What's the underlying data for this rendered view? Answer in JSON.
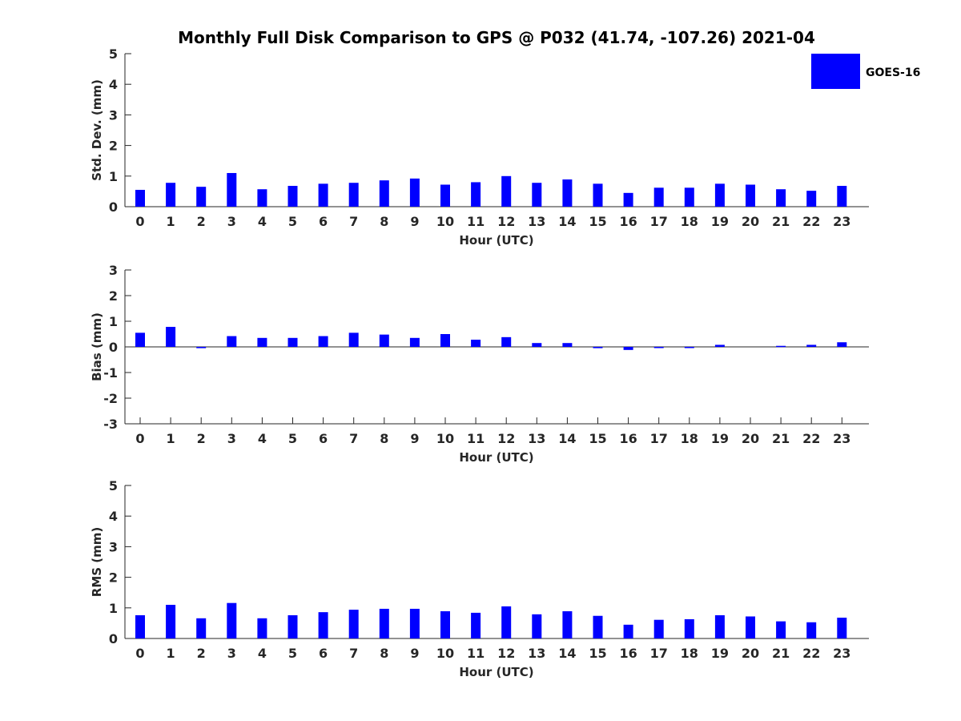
{
  "title": "Monthly Full Disk Comparison to GPS @ P032 (41.74, -107.26) 2021-04",
  "legend": {
    "label": "GOES-16",
    "color": "#0000ff",
    "placement": "top-right"
  },
  "chart_data": [
    {
      "type": "bar",
      "xlabel": "Hour (UTC)",
      "ylabel": "Std. Dev. (mm)",
      "ylim": [
        0,
        5
      ],
      "yticks": [
        "0",
        "1",
        "2",
        "3",
        "4",
        "5"
      ],
      "categories": [
        "0",
        "1",
        "2",
        "3",
        "4",
        "5",
        "6",
        "7",
        "8",
        "9",
        "10",
        "11",
        "12",
        "13",
        "14",
        "15",
        "16",
        "17",
        "18",
        "19",
        "20",
        "21",
        "22",
        "23"
      ],
      "series": [
        {
          "name": "GOES-16",
          "values": [
            0.55,
            0.78,
            0.65,
            1.1,
            0.57,
            0.68,
            0.75,
            0.78,
            0.86,
            0.92,
            0.72,
            0.8,
            1.0,
            0.78,
            0.89,
            0.75,
            0.45,
            0.62,
            0.62,
            0.75,
            0.72,
            0.57,
            0.52,
            0.68
          ]
        }
      ],
      "grid": false
    },
    {
      "type": "bar",
      "xlabel": "Hour (UTC)",
      "ylabel": "Bias (mm)",
      "ylim": [
        -3,
        3
      ],
      "yticks": [
        "-3",
        "-2",
        "-1",
        "0",
        "1",
        "2",
        "3"
      ],
      "categories": [
        "0",
        "1",
        "2",
        "3",
        "4",
        "5",
        "6",
        "7",
        "8",
        "9",
        "10",
        "11",
        "12",
        "13",
        "14",
        "15",
        "16",
        "17",
        "18",
        "19",
        "20",
        "21",
        "22",
        "23"
      ],
      "series": [
        {
          "name": "GOES-16",
          "values": [
            0.55,
            0.78,
            -0.05,
            0.42,
            0.35,
            0.35,
            0.42,
            0.55,
            0.48,
            0.35,
            0.5,
            0.28,
            0.38,
            0.15,
            0.15,
            -0.05,
            -0.12,
            -0.02,
            -0.02,
            0.08,
            0.0,
            0.04,
            0.08,
            0.18
          ]
        }
      ],
      "grid": false
    },
    {
      "type": "bar",
      "xlabel": "Hour (UTC)",
      "ylabel": "RMS (mm)",
      "ylim": [
        0,
        5
      ],
      "yticks": [
        "0",
        "1",
        "2",
        "3",
        "4",
        "5"
      ],
      "categories": [
        "0",
        "1",
        "2",
        "3",
        "4",
        "5",
        "6",
        "7",
        "8",
        "9",
        "10",
        "11",
        "12",
        "13",
        "14",
        "15",
        "16",
        "17",
        "18",
        "19",
        "20",
        "21",
        "22",
        "23"
      ],
      "series": [
        {
          "name": "GOES-16",
          "values": [
            0.76,
            1.1,
            0.66,
            1.16,
            0.66,
            0.76,
            0.86,
            0.94,
            0.97,
            0.97,
            0.89,
            0.84,
            1.05,
            0.79,
            0.89,
            0.74,
            0.45,
            0.61,
            0.63,
            0.76,
            0.72,
            0.56,
            0.53,
            0.68
          ]
        }
      ],
      "grid": false
    }
  ]
}
